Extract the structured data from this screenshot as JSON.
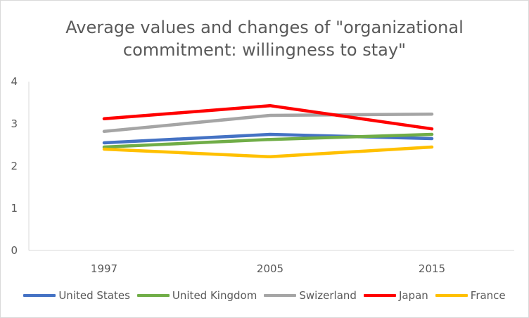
{
  "chart_data": {
    "type": "line",
    "title_lines": [
      "Average values and changes of \"organizational",
      "commitment: willingness to stay\""
    ],
    "xlabel": "",
    "ylabel": "",
    "categories": [
      "1997",
      "2005",
      "2015"
    ],
    "ylim": [
      0,
      4
    ],
    "yticks": [
      "0",
      "1",
      "2",
      "3",
      "4"
    ],
    "grid": false,
    "legend_position": "bottom",
    "series": [
      {
        "name": "United States",
        "color": "#4472C4",
        "values": [
          2.55,
          2.75,
          2.65
        ]
      },
      {
        "name": "United Kingdom",
        "color": "#70AD47",
        "values": [
          2.45,
          2.63,
          2.75
        ]
      },
      {
        "name": "Swizerland",
        "color": "#A5A5A5",
        "values": [
          2.82,
          3.2,
          3.23
        ]
      },
      {
        "name": "Japan",
        "color": "#FF0000",
        "values": [
          3.12,
          3.43,
          2.88
        ]
      },
      {
        "name": "France",
        "color": "#FFC000",
        "values": [
          2.4,
          2.22,
          2.45
        ]
      }
    ]
  }
}
